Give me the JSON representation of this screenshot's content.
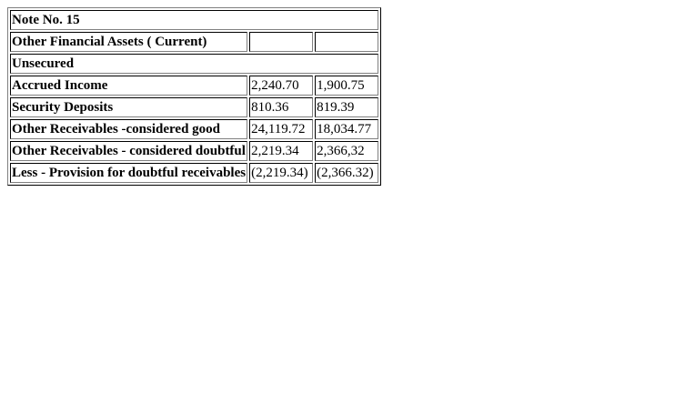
{
  "note": {
    "title": "Note No. 15"
  },
  "section": {
    "heading": "Other Financial Assets ( Current)",
    "subheading": "Unsecured"
  },
  "rows": [
    {
      "label": "Accrued Income",
      "current": "2,240.70",
      "previous": "1,900.75"
    },
    {
      "label": "Security Deposits",
      "current": "810.36",
      "previous": "819.39"
    },
    {
      "label": "Other Receivables -considered good",
      "current": "24,119.72",
      "previous": "18,034.77"
    },
    {
      "label": "Other Receivables - considered doubtful",
      "current": "2,219.34",
      "previous": "2,366,32"
    },
    {
      "label": "Less - Provision for doubtful receivables",
      "current": "(2,219.34)",
      "previous": "(2,366.32)"
    }
  ]
}
